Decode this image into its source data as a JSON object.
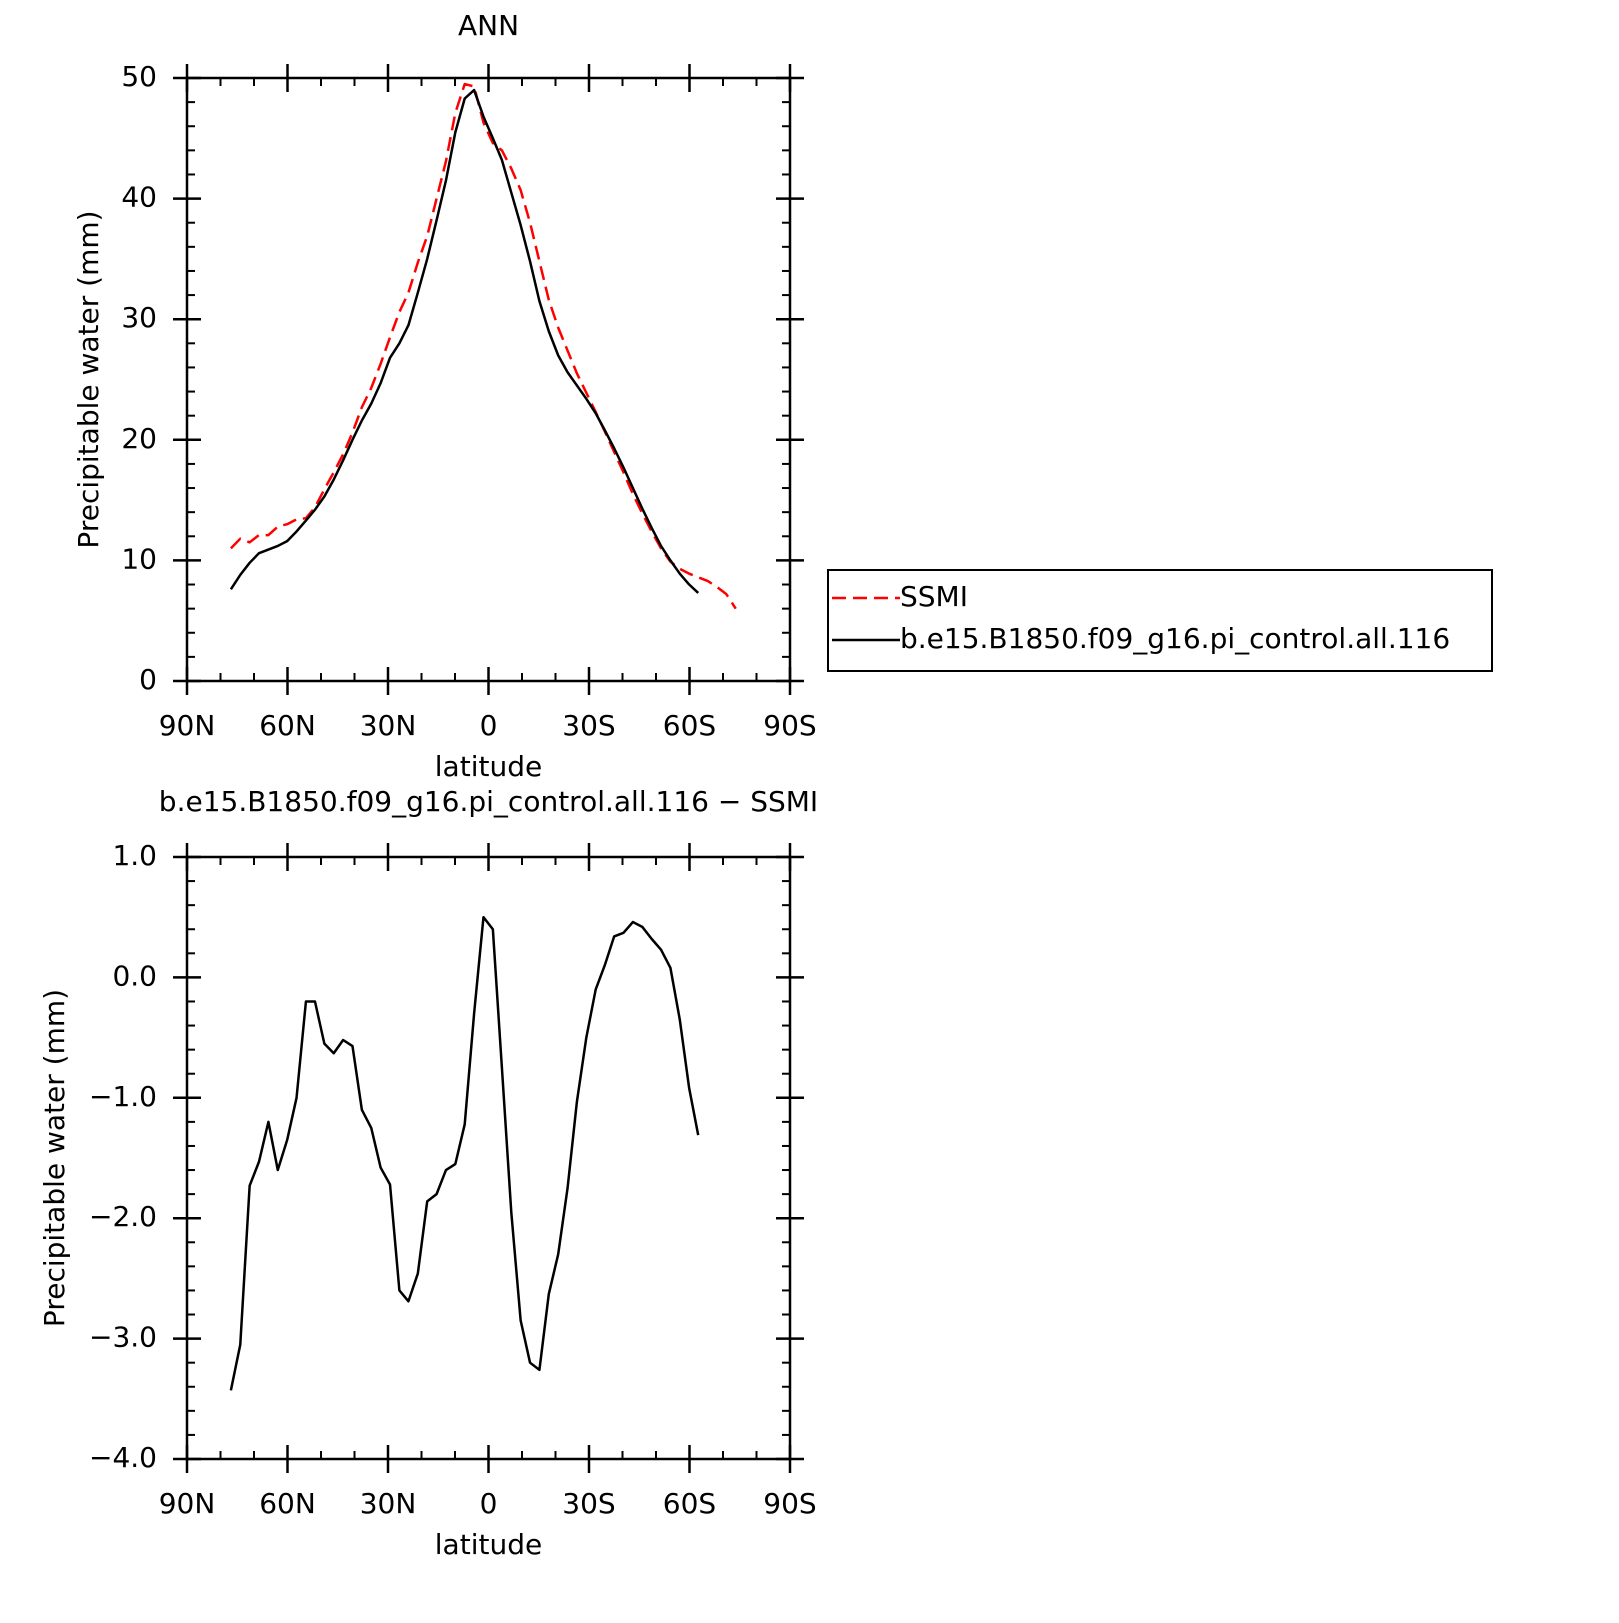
{
  "chart_data": [
    {
      "type": "line",
      "title": "ANN",
      "xlabel": "latitude",
      "ylabel": "Precipitable water (mm)",
      "xlim": [
        90,
        -90
      ],
      "xticks": [
        {
          "value": 90,
          "label": "90N"
        },
        {
          "value": 60,
          "label": "60N"
        },
        {
          "value": 30,
          "label": "30N"
        },
        0,
        {
          "value": -30,
          "label": "30S"
        },
        {
          "value": -60,
          "label": "60S"
        },
        {
          "value": -90,
          "label": "90S"
        }
      ],
      "xminorticks": [
        80,
        70,
        50,
        40,
        20,
        10,
        -10,
        -20,
        -40,
        -50,
        -70,
        -80
      ],
      "ylim": [
        0,
        50
      ],
      "yticks": [
        0,
        10,
        20,
        30,
        40,
        50
      ],
      "yminorticks": [
        2,
        4,
        6,
        8,
        12,
        14,
        16,
        18,
        22,
        24,
        26,
        28,
        32,
        34,
        36,
        38,
        42,
        44,
        46,
        48
      ],
      "legend": "right",
      "series": [
        {
          "name": "SSMI",
          "color": "#ff0000",
          "dash": "dashed",
          "x": [
            76.9,
            74.1,
            71.3,
            68.5,
            65.7,
            62.9,
            60.1,
            57.3,
            54.5,
            51.8,
            49.0,
            46.2,
            43.4,
            40.6,
            37.8,
            35.0,
            32.2,
            29.4,
            26.6,
            23.9,
            21.1,
            18.3,
            15.5,
            12.7,
            9.9,
            7.1,
            4.3,
            1.5,
            -1.3,
            -4.0,
            -6.8,
            -9.6,
            -12.4,
            -15.2,
            -18.0,
            -20.8,
            -23.6,
            -26.4,
            -29.2,
            -32.0,
            -34.7,
            -37.5,
            -40.3,
            -43.1,
            -45.9,
            -48.7,
            -51.5,
            -54.3,
            -57.1,
            -59.9,
            -62.6,
            -65.4,
            -68.2,
            -71.0,
            -73.8
          ],
          "values": [
            11.0,
            11.8,
            11.5,
            12.1,
            12.1,
            12.8,
            13.0,
            13.4,
            13.5,
            14.4,
            15.9,
            17.3,
            18.8,
            20.6,
            22.7,
            24.3,
            26.3,
            28.5,
            30.6,
            32.2,
            34.7,
            36.9,
            40.0,
            43.1,
            47.1,
            49.5,
            49.3,
            46.3,
            44.6,
            44.0,
            42.5,
            40.7,
            38.0,
            34.8,
            31.6,
            29.3,
            27.4,
            25.5,
            23.9,
            22.3,
            20.7,
            19.0,
            17.3,
            15.5,
            13.9,
            12.4,
            11.0,
            9.9,
            9.3,
            8.9,
            8.6,
            8.3,
            7.8,
            7.2,
            6.0
          ]
        },
        {
          "name": "b.e15.B1850.f09_g16.pi_control.all.116",
          "color": "#000000",
          "dash": "solid",
          "x": [
            76.9,
            74.1,
            71.3,
            68.5,
            65.7,
            62.9,
            60.1,
            57.3,
            54.5,
            51.8,
            49.0,
            46.2,
            43.4,
            40.6,
            37.8,
            35.0,
            32.2,
            29.4,
            26.6,
            23.9,
            21.1,
            18.3,
            15.5,
            12.7,
            9.9,
            7.1,
            4.3,
            1.5,
            -1.3,
            -4.0,
            -6.8,
            -9.6,
            -12.4,
            -15.2,
            -18.0,
            -20.8,
            -23.6,
            -26.4,
            -29.2,
            -32.0,
            -34.7,
            -37.5,
            -40.3,
            -43.1,
            -45.9,
            -48.7,
            -51.5,
            -54.3,
            -57.1,
            -59.9,
            -62.6
          ],
          "values": [
            7.6,
            8.8,
            9.8,
            10.6,
            10.9,
            11.2,
            11.6,
            12.4,
            13.3,
            14.2,
            15.3,
            16.7,
            18.3,
            20.0,
            21.6,
            23.0,
            24.7,
            26.8,
            28.0,
            29.5,
            32.2,
            35.0,
            38.2,
            41.5,
            45.5,
            48.3,
            49.0,
            46.8,
            45.0,
            43.2,
            40.5,
            37.8,
            34.8,
            31.5,
            29.0,
            27.0,
            25.6,
            24.5,
            23.4,
            22.2,
            20.8,
            19.3,
            17.7,
            16.0,
            14.3,
            12.7,
            11.2,
            10.0,
            8.9,
            8.0,
            7.3
          ]
        }
      ]
    },
    {
      "type": "line",
      "title": "b.e15.B1850.f09_g16.pi_control.all.116 − SSMI",
      "xlabel": "latitude",
      "ylabel": "Precipitable water (mm)",
      "xlim": [
        90,
        -90
      ],
      "xticks": [
        {
          "value": 90,
          "label": "90N"
        },
        {
          "value": 60,
          "label": "60N"
        },
        {
          "value": 30,
          "label": "30N"
        },
        0,
        {
          "value": -30,
          "label": "30S"
        },
        {
          "value": -60,
          "label": "60S"
        },
        {
          "value": -90,
          "label": "90S"
        }
      ],
      "xminorticks": [
        80,
        70,
        50,
        40,
        20,
        10,
        -10,
        -20,
        -40,
        -50,
        -70,
        -80
      ],
      "ylim": [
        -4,
        1
      ],
      "yticks": [
        {
          "value": 1,
          "label": "1.0"
        },
        {
          "value": 0,
          "label": "0.0"
        },
        {
          "value": -1,
          "label": "−1.0"
        },
        {
          "value": -2,
          "label": "−2.0"
        },
        {
          "value": -3,
          "label": "−3.0"
        },
        {
          "value": -4,
          "label": "−4.0"
        }
      ],
      "yminorticks": [
        0.8,
        0.6,
        0.4,
        0.2,
        -0.2,
        -0.4,
        -0.6,
        -0.8,
        -1.2,
        -1.4,
        -1.6,
        -1.8,
        -2.2,
        -2.4,
        -2.6,
        -2.8,
        -3.2,
        -3.4,
        -3.6,
        -3.8
      ],
      "series": [
        {
          "color": "#000000",
          "dash": "solid",
          "x": [
            76.9,
            74.1,
            71.3,
            68.5,
            65.7,
            62.9,
            60.1,
            57.3,
            54.5,
            51.8,
            49.0,
            46.2,
            43.4,
            40.6,
            37.8,
            35.0,
            32.2,
            29.4,
            26.6,
            23.9,
            21.1,
            18.3,
            15.5,
            12.7,
            9.9,
            7.1,
            4.3,
            1.5,
            -1.3,
            -4.0,
            -6.8,
            -9.6,
            -12.4,
            -15.2,
            -18.0,
            -20.8,
            -23.6,
            -26.4,
            -29.2,
            -32.0,
            -34.7,
            -37.5,
            -40.3,
            -43.1,
            -45.9,
            -48.7,
            -51.5,
            -54.3,
            -57.1,
            -59.9,
            -62.6
          ],
          "values": [
            -3.43,
            -3.05,
            -1.73,
            -1.53,
            -1.2,
            -1.6,
            -1.35,
            -1.0,
            -0.2,
            -0.2,
            -0.55,
            -0.63,
            -0.52,
            -0.57,
            -1.1,
            -1.25,
            -1.58,
            -1.72,
            -2.6,
            -2.69,
            -2.46,
            -1.86,
            -1.8,
            -1.6,
            -1.55,
            -1.22,
            -0.3,
            0.5,
            0.4,
            -0.75,
            -1.95,
            -2.85,
            -3.2,
            -3.26,
            -2.63,
            -2.3,
            -1.75,
            -1.03,
            -0.5,
            -0.1,
            0.1,
            0.34,
            0.37,
            0.46,
            0.42,
            0.32,
            0.23,
            0.08,
            -0.35,
            -0.92,
            -1.31
          ]
        }
      ]
    }
  ]
}
